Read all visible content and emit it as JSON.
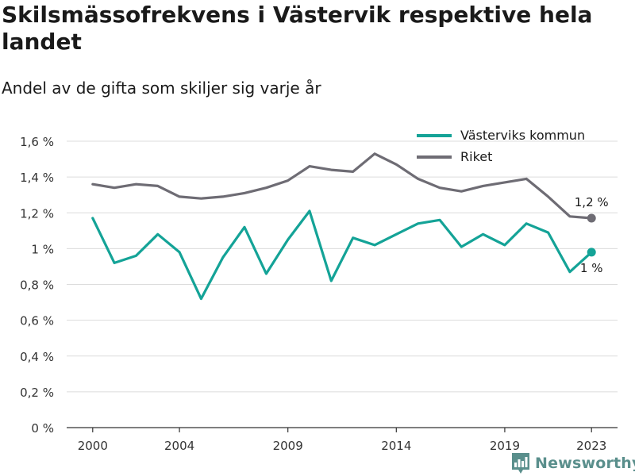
{
  "header": {
    "title": "Skilsmässofrekvens i Västervik respektive hela landet",
    "subtitle": "Andel av de gifta som skiljer sig varje år"
  },
  "brand": {
    "name": "Newsworthy",
    "icon": "newsworthy-chart-logo-icon",
    "color": "#5a8f8c"
  },
  "chart_data": {
    "type": "line",
    "x": [
      2000,
      2001,
      2002,
      2003,
      2004,
      2005,
      2006,
      2007,
      2008,
      2009,
      2010,
      2011,
      2012,
      2013,
      2014,
      2015,
      2016,
      2017,
      2018,
      2019,
      2020,
      2021,
      2022,
      2023
    ],
    "xticks": [
      2000,
      2004,
      2009,
      2014,
      2019,
      2023
    ],
    "xtick_labels": [
      "2000",
      "2004",
      "2009",
      "2014",
      "2019",
      "2023"
    ],
    "xlim": [
      1998.8,
      2024.2
    ],
    "ylim": [
      0,
      1.6
    ],
    "yticks": [
      0,
      0.2,
      0.4,
      0.6,
      0.8,
      1.0,
      1.2,
      1.4,
      1.6
    ],
    "ytick_labels": [
      "0 %",
      "0,2 %",
      "0,4 %",
      "0,6 %",
      "0,8 %",
      "1 %",
      "1,2 %",
      "1,4 %",
      "1,6 %"
    ],
    "grid": true,
    "legend_position": "top-right",
    "series": [
      {
        "name": "Västerviks kommun",
        "color": "#14a397",
        "values": [
          1.17,
          0.92,
          0.96,
          1.08,
          0.98,
          0.72,
          0.95,
          1.12,
          0.86,
          1.05,
          1.21,
          0.82,
          1.06,
          1.02,
          1.08,
          1.14,
          1.16,
          1.01,
          1.08,
          1.02,
          1.14,
          1.09,
          0.87,
          0.98
        ],
        "end_label": "1 %"
      },
      {
        "name": "Riket",
        "color": "#6e6c74",
        "values": [
          1.36,
          1.34,
          1.36,
          1.35,
          1.29,
          1.28,
          1.29,
          1.31,
          1.34,
          1.38,
          1.46,
          1.44,
          1.43,
          1.53,
          1.47,
          1.39,
          1.34,
          1.32,
          1.35,
          1.37,
          1.39,
          1.29,
          1.18,
          1.17
        ],
        "end_label": "1,2 %"
      }
    ]
  }
}
